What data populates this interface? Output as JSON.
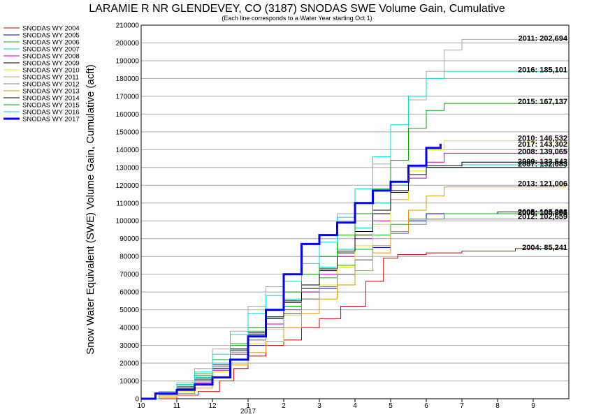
{
  "chart_data": {
    "type": "line",
    "title": "LARAMIE R NR GLENDEVEY, CO (3187) SNODAS SWE Volume Gain, Cumulative",
    "subtitle": "(Each line corresponds to a Water Year starting Oct 1)",
    "ylabel": "Snow Water Equivalent (SWE) Volume Gain, Cumulative (acft)",
    "xlabel": "",
    "x_tick_labels": [
      "10",
      "11",
      "12",
      "1",
      "2",
      "3",
      "4",
      "5",
      "6",
      "7",
      "8",
      "9"
    ],
    "x_year_label": "2017",
    "xlim": [
      0,
      12
    ],
    "ylim": [
      0,
      210000
    ],
    "y_ticks": [
      "0",
      "10000",
      "20000",
      "30000",
      "40000",
      "50000",
      "60000",
      "70000",
      "80000",
      "90000",
      "100000",
      "110000",
      "120000",
      "130000",
      "140000",
      "150000",
      "160000",
      "170000",
      "180000",
      "190000",
      "200000",
      "210000"
    ],
    "grid": "horizontal",
    "legend_position": "left",
    "series": [
      {
        "name": "SNODAS WY 2004",
        "color": "#cc0000",
        "end_label": "2004: 85,241",
        "label_value": 85241,
        "points": [
          [
            0,
            0
          ],
          [
            0.5,
            0
          ],
          [
            1.0,
            2000
          ],
          [
            1.6,
            4000
          ],
          [
            2.2,
            10000
          ],
          [
            2.6,
            17000
          ],
          [
            3.0,
            24000
          ],
          [
            3.5,
            30000
          ],
          [
            4.0,
            33000
          ],
          [
            4.5,
            40000
          ],
          [
            5.0,
            45000
          ],
          [
            5.6,
            52000
          ],
          [
            6.3,
            66000
          ],
          [
            6.8,
            79000
          ],
          [
            7.2,
            81000
          ],
          [
            8.0,
            82000
          ],
          [
            9.0,
            83000
          ],
          [
            10.5,
            84500
          ],
          [
            11.9,
            85241
          ]
        ]
      },
      {
        "name": "SNODAS WY 2005",
        "color": "#0000cc",
        "end_label": "2005: 105,288",
        "label_value": 105288,
        "points": [
          [
            0,
            0
          ],
          [
            0.5,
            3000
          ],
          [
            1.0,
            6000
          ],
          [
            1.5,
            10000
          ],
          [
            2.0,
            17000
          ],
          [
            2.5,
            22000
          ],
          [
            3.0,
            30000
          ],
          [
            3.5,
            40000
          ],
          [
            4.0,
            48000
          ],
          [
            4.5,
            56000
          ],
          [
            5.0,
            62000
          ],
          [
            5.5,
            70000
          ],
          [
            6.0,
            78000
          ],
          [
            6.5,
            85000
          ],
          [
            7.0,
            93000
          ],
          [
            7.5,
            100000
          ],
          [
            8.0,
            104000
          ],
          [
            10.0,
            105000
          ],
          [
            11.9,
            105288
          ]
        ]
      },
      {
        "name": "SNODAS WY 2006",
        "color": "#00bb00",
        "end_label": "2006: 104,891",
        "label_value": 104891,
        "points": [
          [
            0,
            0
          ],
          [
            0.5,
            4000
          ],
          [
            1.0,
            8000
          ],
          [
            1.5,
            14000
          ],
          [
            2.0,
            22000
          ],
          [
            2.5,
            31000
          ],
          [
            3.0,
            38000
          ],
          [
            3.5,
            45000
          ],
          [
            4.0,
            52000
          ],
          [
            4.5,
            60000
          ],
          [
            5.0,
            68000
          ],
          [
            5.5,
            75000
          ],
          [
            6.0,
            84000
          ],
          [
            6.5,
            92000
          ],
          [
            7.0,
            98000
          ],
          [
            7.5,
            101000
          ],
          [
            8.5,
            104000
          ],
          [
            11.9,
            104891
          ]
        ]
      },
      {
        "name": "SNODAS WY 2007",
        "color": "#00cccc",
        "end_label": "2007: 132,083",
        "label_value": 132083,
        "points": [
          [
            0,
            0
          ],
          [
            0.5,
            3000
          ],
          [
            1.0,
            7000
          ],
          [
            1.5,
            12000
          ],
          [
            2.0,
            20000
          ],
          [
            2.5,
            28000
          ],
          [
            3.0,
            35000
          ],
          [
            3.5,
            46000
          ],
          [
            4.0,
            56000
          ],
          [
            4.5,
            64000
          ],
          [
            5.0,
            74000
          ],
          [
            5.5,
            84000
          ],
          [
            6.0,
            96000
          ],
          [
            6.5,
            110000
          ],
          [
            7.0,
            120000
          ],
          [
            7.5,
            126000
          ],
          [
            8.0,
            130000
          ],
          [
            9.0,
            131500
          ],
          [
            11.9,
            132083
          ]
        ]
      },
      {
        "name": "SNODAS WY 2008",
        "color": "#cc00cc",
        "end_label": "2008: 139,065",
        "label_value": 139065,
        "points": [
          [
            0,
            0
          ],
          [
            0.5,
            2000
          ],
          [
            1.0,
            5000
          ],
          [
            1.5,
            9000
          ],
          [
            2.0,
            16000
          ],
          [
            2.5,
            25000
          ],
          [
            3.0,
            33000
          ],
          [
            3.5,
            42000
          ],
          [
            4.0,
            50000
          ],
          [
            4.5,
            60000
          ],
          [
            5.0,
            70000
          ],
          [
            5.5,
            80000
          ],
          [
            6.0,
            90000
          ],
          [
            6.5,
            100000
          ],
          [
            7.0,
            112000
          ],
          [
            7.5,
            124000
          ],
          [
            8.0,
            133000
          ],
          [
            8.5,
            138000
          ],
          [
            11.9,
            139065
          ]
        ]
      },
      {
        "name": "SNODAS WY 2009",
        "color": "#000000",
        "end_label": "2009: 133,543",
        "label_value": 133543,
        "points": [
          [
            0,
            0
          ],
          [
            0.5,
            2000
          ],
          [
            1.0,
            5000
          ],
          [
            1.5,
            10000
          ],
          [
            2.0,
            18000
          ],
          [
            2.5,
            27000
          ],
          [
            3.0,
            36000
          ],
          [
            3.5,
            45000
          ],
          [
            4.0,
            54000
          ],
          [
            4.5,
            62000
          ],
          [
            5.0,
            72000
          ],
          [
            5.5,
            82000
          ],
          [
            6.0,
            92000
          ],
          [
            6.5,
            104000
          ],
          [
            7.0,
            116000
          ],
          [
            7.5,
            126000
          ],
          [
            8.0,
            131000
          ],
          [
            9.0,
            133000
          ],
          [
            11.9,
            133543
          ]
        ]
      },
      {
        "name": "SNODAS WY 2010",
        "color": "#e8e800",
        "end_label": "2010: 146,532",
        "label_value": 146532,
        "points": [
          [
            0,
            0
          ],
          [
            0.5,
            2000
          ],
          [
            1.0,
            4000
          ],
          [
            1.5,
            8000
          ],
          [
            2.0,
            15000
          ],
          [
            2.5,
            22000
          ],
          [
            3.0,
            31000
          ],
          [
            3.5,
            39000
          ],
          [
            4.0,
            47000
          ],
          [
            4.5,
            56000
          ],
          [
            5.0,
            64000
          ],
          [
            5.5,
            74000
          ],
          [
            6.0,
            86000
          ],
          [
            6.5,
            98000
          ],
          [
            7.0,
            112000
          ],
          [
            7.5,
            128000
          ],
          [
            8.0,
            140000
          ],
          [
            8.5,
            145000
          ],
          [
            11.9,
            146532
          ]
        ]
      },
      {
        "name": "SNODAS WY 2011",
        "color": "#aaaaaa",
        "end_label": "2011: 202,694",
        "label_value": 202694,
        "points": [
          [
            0,
            0
          ],
          [
            0.5,
            4000
          ],
          [
            1.0,
            9000
          ],
          [
            1.5,
            17000
          ],
          [
            2.0,
            28000
          ],
          [
            2.5,
            38000
          ],
          [
            3.0,
            52000
          ],
          [
            3.5,
            63000
          ],
          [
            4.0,
            70000
          ],
          [
            4.5,
            80000
          ],
          [
            5.0,
            90000
          ],
          [
            5.5,
            104000
          ],
          [
            6.0,
            118000
          ],
          [
            6.5,
            132000
          ],
          [
            7.0,
            150000
          ],
          [
            7.5,
            168000
          ],
          [
            8.0,
            184000
          ],
          [
            8.5,
            196000
          ],
          [
            9.0,
            202000
          ],
          [
            11.9,
            202694
          ]
        ]
      },
      {
        "name": "SNODAS WY 2012",
        "color": "#888888",
        "end_label": "2012: 102,659",
        "label_value": 102659,
        "points": [
          [
            0,
            0
          ],
          [
            0.5,
            3000
          ],
          [
            1.0,
            6000
          ],
          [
            1.5,
            11000
          ],
          [
            2.0,
            18000
          ],
          [
            2.5,
            26000
          ],
          [
            3.0,
            33000
          ],
          [
            3.5,
            40000
          ],
          [
            4.0,
            48000
          ],
          [
            4.5,
            56000
          ],
          [
            5.0,
            63000
          ],
          [
            5.5,
            70000
          ],
          [
            6.0,
            78000
          ],
          [
            6.5,
            86000
          ],
          [
            7.0,
            93000
          ],
          [
            7.5,
            98000
          ],
          [
            8.0,
            101000
          ],
          [
            11.9,
            102659
          ]
        ]
      },
      {
        "name": "SNODAS WY 2013",
        "color": "#e69500",
        "end_label": "2013: 121,006",
        "label_value": 121006,
        "points": [
          [
            0,
            0
          ],
          [
            0.5,
            1000
          ],
          [
            1.0,
            3000
          ],
          [
            1.5,
            6000
          ],
          [
            2.0,
            12000
          ],
          [
            2.5,
            19000
          ],
          [
            3.0,
            26000
          ],
          [
            3.5,
            32000
          ],
          [
            4.0,
            40000
          ],
          [
            4.5,
            48000
          ],
          [
            5.0,
            56000
          ],
          [
            5.5,
            64000
          ],
          [
            6.0,
            72000
          ],
          [
            6.5,
            82000
          ],
          [
            7.0,
            94000
          ],
          [
            7.5,
            106000
          ],
          [
            8.0,
            114000
          ],
          [
            8.5,
            119000
          ],
          [
            11.9,
            121006
          ]
        ]
      },
      {
        "name": "SNODAS WY 2014",
        "color": "#000000",
        "end_label": "",
        "label_value": 131000,
        "points": [
          [
            0,
            0
          ],
          [
            0.5,
            2500
          ],
          [
            1.0,
            6000
          ],
          [
            1.5,
            11000
          ],
          [
            2.0,
            19000
          ],
          [
            2.5,
            28000
          ],
          [
            3.0,
            37000
          ],
          [
            3.5,
            46000
          ],
          [
            4.0,
            55000
          ],
          [
            4.5,
            64000
          ],
          [
            5.0,
            73000
          ],
          [
            5.5,
            83000
          ],
          [
            6.0,
            94000
          ],
          [
            6.5,
            106000
          ],
          [
            7.0,
            117000
          ],
          [
            7.5,
            126000
          ],
          [
            8.0,
            130000
          ],
          [
            11.9,
            131000
          ]
        ]
      },
      {
        "name": "SNODAS WY 2015",
        "color": "#00aa00",
        "end_label": "2015: 167,137",
        "label_value": 167137,
        "points": [
          [
            0,
            0
          ],
          [
            0.5,
            3000
          ],
          [
            1.0,
            7000
          ],
          [
            1.5,
            13000
          ],
          [
            2.0,
            22000
          ],
          [
            2.5,
            30000
          ],
          [
            3.0,
            40000
          ],
          [
            3.5,
            50000
          ],
          [
            4.0,
            60000
          ],
          [
            4.5,
            70000
          ],
          [
            5.0,
            80000
          ],
          [
            5.5,
            92000
          ],
          [
            6.0,
            104000
          ],
          [
            6.5,
            118000
          ],
          [
            7.0,
            134000
          ],
          [
            7.5,
            152000
          ],
          [
            8.0,
            162000
          ],
          [
            8.5,
            166000
          ],
          [
            11.9,
            167137
          ]
        ]
      },
      {
        "name": "SNODAS WY 2016",
        "color": "#00dddd",
        "end_label": "2016: 185,101",
        "label_value": 185101,
        "points": [
          [
            0,
            0
          ],
          [
            0.5,
            3000
          ],
          [
            1.0,
            8000
          ],
          [
            1.5,
            15000
          ],
          [
            2.0,
            25000
          ],
          [
            2.5,
            36000
          ],
          [
            3.0,
            48000
          ],
          [
            3.5,
            58000
          ],
          [
            4.0,
            66000
          ],
          [
            4.5,
            76000
          ],
          [
            5.0,
            88000
          ],
          [
            5.5,
            102000
          ],
          [
            6.0,
            118000
          ],
          [
            6.5,
            136000
          ],
          [
            7.0,
            154000
          ],
          [
            7.5,
            170000
          ],
          [
            8.0,
            180000
          ],
          [
            8.5,
            184000
          ],
          [
            11.9,
            185101
          ]
        ]
      },
      {
        "name": "SNODAS WY 2017",
        "color": "#0000ff",
        "bold": true,
        "end_label": "2017: 143,302",
        "label_value": 143302,
        "points": [
          [
            0,
            0
          ],
          [
            0.4,
            3000
          ],
          [
            1.0,
            5000
          ],
          [
            1.5,
            8000
          ],
          [
            2.0,
            12000
          ],
          [
            2.5,
            22000
          ],
          [
            3.0,
            35000
          ],
          [
            3.5,
            50000
          ],
          [
            4.0,
            70000
          ],
          [
            4.5,
            87000
          ],
          [
            5.0,
            92000
          ],
          [
            5.5,
            99000
          ],
          [
            6.0,
            110000
          ],
          [
            6.5,
            117000
          ],
          [
            7.0,
            122000
          ],
          [
            7.5,
            131000
          ],
          [
            8.0,
            141000
          ],
          [
            8.4,
            143302
          ]
        ]
      }
    ]
  }
}
